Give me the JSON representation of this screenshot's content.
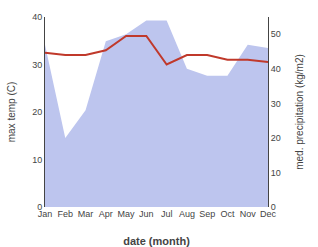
{
  "chart_data": {
    "type": "line",
    "categories": [
      "Jan",
      "Feb",
      "Mar",
      "Apr",
      "May",
      "Jun",
      "Jul",
      "Aug",
      "Sep",
      "Oct",
      "Nov",
      "Dec"
    ],
    "xlabel": "date (month)",
    "ylabel": "max temp (C)",
    "y2label": "med. precipitation (kg/m2)",
    "series": [
      {
        "type": "area",
        "axis": "y2",
        "color": "#bdc5ee",
        "values": [
          47,
          20,
          28,
          48,
          50,
          54,
          54,
          40,
          38,
          38,
          47,
          46
        ]
      },
      {
        "type": "line",
        "axis": "y",
        "color": "#c0392b",
        "values": [
          32.5,
          32.0,
          32.0,
          33.0,
          36.0,
          36.0,
          30.0,
          32.0,
          32.0,
          31.0,
          31.0,
          30.5
        ]
      }
    ],
    "ylim": [
      0,
      40
    ],
    "yticks": [
      0,
      10,
      20,
      30,
      40
    ],
    "y2lim": [
      0,
      55
    ],
    "y2ticks": [
      0,
      10,
      20,
      30,
      40,
      50
    ],
    "grid": false
  }
}
